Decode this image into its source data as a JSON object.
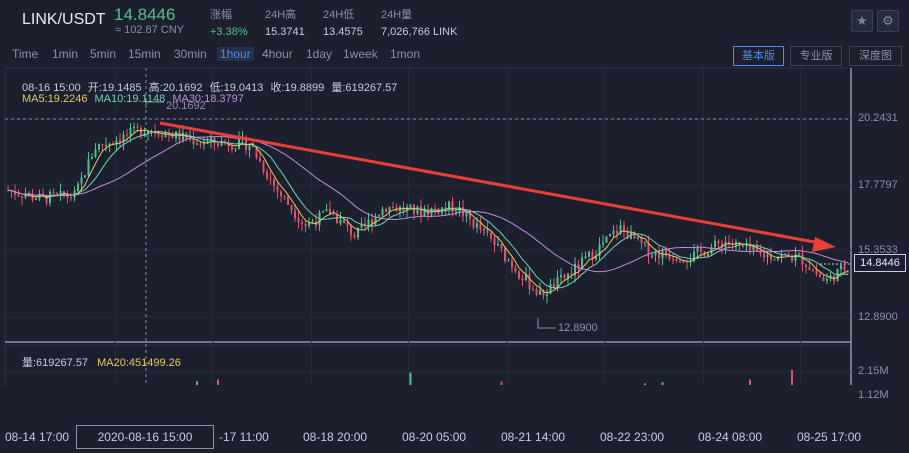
{
  "header": {
    "pair": "LINK/USDT",
    "price": "14.8446",
    "cny": "≈ 102.87 CNY",
    "stats": [
      {
        "label": "涨幅",
        "value": "+3.38%",
        "up": true
      },
      {
        "label": "24H高",
        "value": "15.3741"
      },
      {
        "label": "24H低",
        "value": "13.4575"
      },
      {
        "label": "24H量",
        "value": "7,026,766 LINK"
      }
    ],
    "fav_icon": "star-icon",
    "settings_icon": "gear-icon"
  },
  "toolbar": {
    "timeframes": [
      "Time",
      "1min",
      "5min",
      "15min",
      "30min",
      "1hour",
      "4hour",
      "1day",
      "1week",
      "1mon"
    ],
    "active": "1hour",
    "modes": [
      "基本版",
      "专业版",
      "深度图"
    ],
    "active_mode": "基本版"
  },
  "legend": {
    "ohlc": [
      "08-16 15:00",
      "开:19.1485",
      "高:20.1692",
      "低:19.0413",
      "收:19.8899",
      "量:619267.57"
    ],
    "ma5": "MA5:19.2246",
    "ma10": "MA10:19.1148",
    "ma30": "MA30:18.3797"
  },
  "volume_legend": {
    "vol": "量:619267.57",
    "ma20": "MA20:451499.26"
  },
  "price_axis": [
    "20.2431",
    "17.7797",
    "15.3533",
    "12.8900"
  ],
  "volume_axis": [
    "2.15M",
    "1.12M"
  ],
  "current_price": "14.8446",
  "annotations": {
    "high": "20.1692",
    "low": "12.8900"
  },
  "crosshair_time": "2020-08-16 15:00",
  "time_axis": [
    "08-14 17:00",
    "-17 11:00",
    "08-18 20:00",
    "08-20 05:00",
    "08-21 14:00",
    "08-22 23:00",
    "08-24 08:00",
    "08-25 17:00"
  ],
  "colors": {
    "up": "#4fc08d",
    "down": "#e0506a",
    "ma5": "#e9c46a",
    "ma10": "#6fd3b5",
    "ma30": "#c28bdc",
    "arrow": "#e8413a"
  }
}
